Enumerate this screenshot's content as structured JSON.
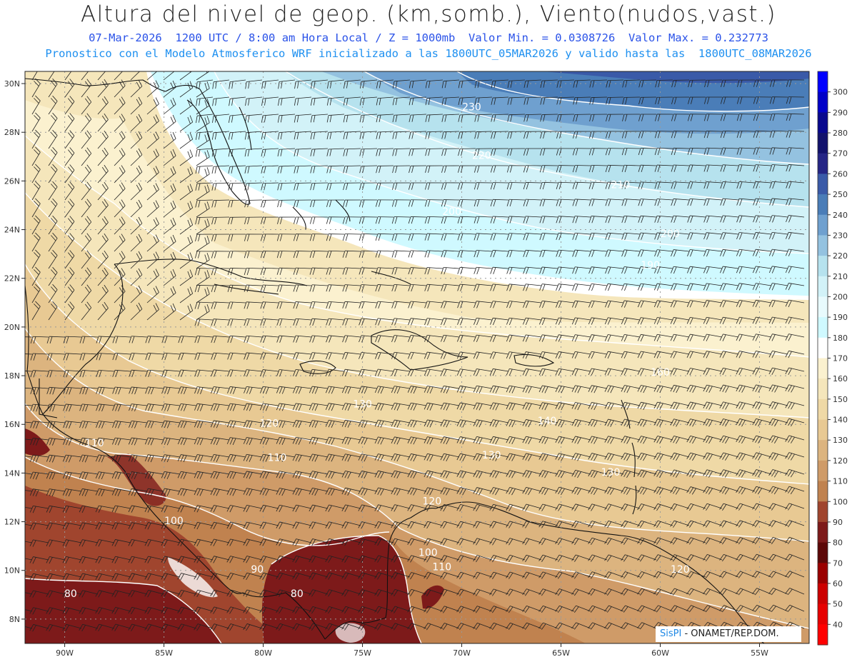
{
  "title": "Altura del nivel de geop. (km,somb.), Viento(nudos,vast.)",
  "subtitle1": "07-Mar-2026  1200 UTC / 8:00 am Hora Local / Z = 1000mb  Valor Min. = 0.0308726  Valor Max. = 0.232773",
  "subtitle2": "Pronostico con el Modelo Atmosferico WRF inicializado a las 1800UTC_05MAR2026 y valido hasta las  1800UTC_08MAR2026",
  "credit": {
    "brand": "SisPI",
    "text": " - ONAMET/REP.DOM."
  },
  "map_data": {
    "lon_range": [
      -92,
      -52.5
    ],
    "lat_range": [
      7,
      30.5
    ],
    "lon_ticks": [
      {
        "v": -90,
        "label": "90W"
      },
      {
        "v": -85,
        "label": "85W"
      },
      {
        "v": -80,
        "label": "80W"
      },
      {
        "v": -75,
        "label": "75W"
      },
      {
        "v": -70,
        "label": "70W"
      },
      {
        "v": -65,
        "label": "65W"
      },
      {
        "v": -60,
        "label": "60W"
      },
      {
        "v": -55,
        "label": "55W"
      }
    ],
    "lat_ticks": [
      {
        "v": 8,
        "label": "8N"
      },
      {
        "v": 10,
        "label": "10N"
      },
      {
        "v": 12,
        "label": "12N"
      },
      {
        "v": 14,
        "label": "14N"
      },
      {
        "v": 16,
        "label": "16N"
      },
      {
        "v": 18,
        "label": "18N"
      },
      {
        "v": 20,
        "label": "20N"
      },
      {
        "v": 22,
        "label": "22N"
      },
      {
        "v": 24,
        "label": "24N"
      },
      {
        "v": 26,
        "label": "26N"
      },
      {
        "v": 28,
        "label": "28N"
      },
      {
        "v": 30,
        "label": "30N"
      }
    ],
    "contour_labels": [
      {
        "text": "230",
        "lon": -69.5,
        "lat": 28.9
      },
      {
        "text": "220",
        "lon": -69.0,
        "lat": 26.9
      },
      {
        "text": "210",
        "lon": -62.0,
        "lat": 25.7
      },
      {
        "text": "200",
        "lon": -70.5,
        "lat": 24.6
      },
      {
        "text": "200",
        "lon": -59.5,
        "lat": 23.7
      },
      {
        "text": "190",
        "lon": -60.5,
        "lat": 22.4
      },
      {
        "text": "160",
        "lon": -60.0,
        "lat": 18.0
      },
      {
        "text": "130",
        "lon": -75.0,
        "lat": 16.7
      },
      {
        "text": "120",
        "lon": -79.7,
        "lat": 15.9
      },
      {
        "text": "140",
        "lon": -65.7,
        "lat": 16.0
      },
      {
        "text": "110",
        "lon": -88.5,
        "lat": 15.1
      },
      {
        "text": "110",
        "lon": -79.3,
        "lat": 14.5
      },
      {
        "text": "130",
        "lon": -68.5,
        "lat": 14.6
      },
      {
        "text": "130",
        "lon": -62.5,
        "lat": 13.9
      },
      {
        "text": "120",
        "lon": -71.5,
        "lat": 12.7
      },
      {
        "text": "100",
        "lon": -84.5,
        "lat": 11.9
      },
      {
        "text": "100",
        "lon": -71.7,
        "lat": 10.6
      },
      {
        "text": "110",
        "lon": -71.0,
        "lat": 10.0
      },
      {
        "text": "90",
        "lon": -80.3,
        "lat": 9.9
      },
      {
        "text": "120",
        "lon": -59.0,
        "lat": 9.9
      },
      {
        "text": "80",
        "lon": -89.7,
        "lat": 8.9
      },
      {
        "text": "80",
        "lon": -78.3,
        "lat": 8.9
      }
    ],
    "wind_direction": "easterly trades, northwesterly flow over Gulf of Mexico"
  },
  "colorbar": {
    "labels": [
      "300",
      "290",
      "280",
      "270",
      "260",
      "250",
      "240",
      "230",
      "220",
      "210",
      "200",
      "190",
      "180",
      "170",
      "160",
      "150",
      "140",
      "130",
      "120",
      "110",
      "100",
      "90",
      "80",
      "70",
      "60",
      "50",
      "40"
    ],
    "colors": [
      "#0000ff",
      "#0000c8",
      "#08088e",
      "#12126c",
      "#252585",
      "#3a5aa8",
      "#4a7db8",
      "#6fa0cf",
      "#94c2e0",
      "#b6e2ee",
      "#d2f2f8",
      "#e8fafd",
      "#cff9ff",
      "#ffffff",
      "#fbf1cf",
      "#f5e6bb",
      "#efd9a6",
      "#e8c993",
      "#dcb47f",
      "#cf9b68",
      "#c0824f",
      "#a0452e",
      "#7d1a1a",
      "#5c0808",
      "#9a0000",
      "#cc0000",
      "#e60000",
      "#ff0000"
    ]
  }
}
